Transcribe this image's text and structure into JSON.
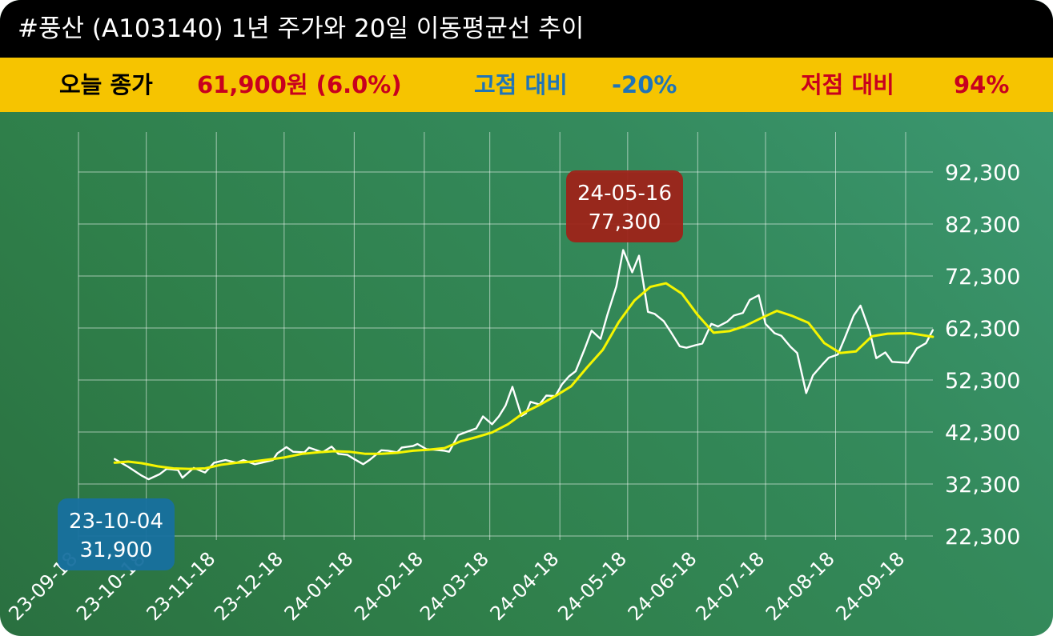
{
  "title": "#풍산 (A103140) 1년 주가와 20일 이동평균선 추이",
  "info": {
    "close_label": "오늘 종가",
    "close_value": "61,900원 (6.0%)",
    "high_label": "고점 대비",
    "high_value": "-20%",
    "low_label": "저점 대비",
    "low_value": "94%"
  },
  "colors": {
    "title_bg": "#000000",
    "info_bg": "#f6c400",
    "close_value": "#c8001e",
    "high": "#1f74b8",
    "low": "#c8001e",
    "price_line": "#ffffff",
    "ma_line": "#f5f500",
    "high_callout": "#9e2319",
    "low_callout": "#17709f"
  },
  "chart_data": {
    "type": "line",
    "x_labels": [
      "23-09-18",
      "23-10-18",
      "23-11-18",
      "23-12-18",
      "24-01-18",
      "24-02-18",
      "24-03-18",
      "24-04-18",
      "24-05-18",
      "24-06-18",
      "24-07-18",
      "24-08-18",
      "24-09-18"
    ],
    "y_ticks": [
      "22,300",
      "32,300",
      "42,300",
      "52,300",
      "62,300",
      "72,300",
      "82,300",
      "92,300"
    ],
    "ylim": [
      22300,
      92300
    ],
    "grid": true,
    "series": [
      {
        "role": "price",
        "points": [
          [
            "23-10-04",
            37100
          ],
          [
            "23-10-10",
            35600
          ],
          [
            "23-10-16",
            33900
          ],
          [
            "23-10-19",
            33200
          ],
          [
            "23-10-24",
            34200
          ],
          [
            "23-10-27",
            35200
          ],
          [
            "23-11-01",
            35000
          ],
          [
            "23-11-03",
            33500
          ],
          [
            "23-11-08",
            35400
          ],
          [
            "23-11-13",
            34500
          ],
          [
            "23-11-17",
            36400
          ],
          [
            "23-11-22",
            36900
          ],
          [
            "23-11-27",
            36400
          ],
          [
            "23-11-30",
            36900
          ],
          [
            "23-12-05",
            36100
          ],
          [
            "23-12-08",
            36400
          ],
          [
            "23-12-13",
            36900
          ],
          [
            "23-12-15",
            38200
          ],
          [
            "23-12-19",
            39400
          ],
          [
            "23-12-22",
            38500
          ],
          [
            "23-12-27",
            38400
          ],
          [
            "23-12-29",
            39300
          ],
          [
            "24-01-04",
            38400
          ],
          [
            "24-01-08",
            39500
          ],
          [
            "24-01-11",
            38100
          ],
          [
            "24-01-15",
            37900
          ],
          [
            "24-01-18",
            37100
          ],
          [
            "24-01-22",
            36100
          ],
          [
            "24-01-25",
            37000
          ],
          [
            "24-01-30",
            38800
          ],
          [
            "24-02-02",
            38700
          ],
          [
            "24-02-06",
            38400
          ],
          [
            "24-02-08",
            39300
          ],
          [
            "24-02-13",
            39600
          ],
          [
            "24-02-15",
            40000
          ],
          [
            "24-02-19",
            39000
          ],
          [
            "24-02-22",
            38900
          ],
          [
            "24-02-27",
            38700
          ],
          [
            "24-02-29",
            38500
          ],
          [
            "24-03-04",
            41700
          ],
          [
            "24-03-07",
            42200
          ],
          [
            "24-03-12",
            43000
          ],
          [
            "24-03-15",
            45300
          ],
          [
            "24-03-19",
            43800
          ],
          [
            "24-03-22",
            45300
          ],
          [
            "24-03-25",
            47400
          ],
          [
            "24-03-28",
            51000
          ],
          [
            "24-04-01",
            45400
          ],
          [
            "24-04-03",
            45900
          ],
          [
            "24-04-05",
            48100
          ],
          [
            "24-04-09",
            47600
          ],
          [
            "24-04-12",
            49300
          ],
          [
            "24-04-16",
            49200
          ],
          [
            "24-04-19",
            51500
          ],
          [
            "24-04-22",
            53000
          ],
          [
            "24-04-25",
            54000
          ],
          [
            "24-04-29",
            58300
          ],
          [
            "24-05-02",
            61800
          ],
          [
            "24-05-06",
            60200
          ],
          [
            "24-05-09",
            64800
          ],
          [
            "24-05-13",
            70300
          ],
          [
            "24-05-16",
            77300
          ],
          [
            "24-05-20",
            73000
          ],
          [
            "24-05-23",
            76200
          ],
          [
            "24-05-27",
            65400
          ],
          [
            "24-05-30",
            65000
          ],
          [
            "24-06-03",
            63600
          ],
          [
            "24-06-06",
            61600
          ],
          [
            "24-06-10",
            58800
          ],
          [
            "24-06-13",
            58500
          ],
          [
            "24-06-17",
            59000
          ],
          [
            "24-06-20",
            59300
          ],
          [
            "24-06-24",
            63100
          ],
          [
            "24-06-27",
            62600
          ],
          [
            "24-07-01",
            63500
          ],
          [
            "24-07-04",
            64700
          ],
          [
            "24-07-08",
            65200
          ],
          [
            "24-07-11",
            67700
          ],
          [
            "24-07-15",
            68600
          ],
          [
            "24-07-18",
            63100
          ],
          [
            "24-07-22",
            61300
          ],
          [
            "24-07-25",
            60800
          ],
          [
            "24-07-29",
            58700
          ],
          [
            "24-08-01",
            57500
          ],
          [
            "24-08-05",
            49800
          ],
          [
            "24-08-08",
            53200
          ],
          [
            "24-08-12",
            55200
          ],
          [
            "24-08-15",
            56600
          ],
          [
            "24-08-19",
            57200
          ],
          [
            "24-08-22",
            60300
          ],
          [
            "24-08-26",
            64700
          ],
          [
            "24-08-29",
            66600
          ],
          [
            "24-09-02",
            61800
          ],
          [
            "24-09-05",
            56500
          ],
          [
            "24-09-09",
            57600
          ],
          [
            "24-09-12",
            55800
          ],
          [
            "24-09-19",
            55600
          ],
          [
            "24-09-23",
            58400
          ],
          [
            "24-09-27",
            59400
          ],
          [
            "24-09-30",
            61900
          ]
        ]
      },
      {
        "role": "ma20",
        "points": [
          [
            "23-10-04",
            36400
          ],
          [
            "23-10-10",
            36600
          ],
          [
            "23-10-16",
            36300
          ],
          [
            "23-10-23",
            35700
          ],
          [
            "23-10-30",
            35300
          ],
          [
            "23-11-06",
            35200
          ],
          [
            "23-11-13",
            35300
          ],
          [
            "23-11-20",
            36000
          ],
          [
            "23-11-27",
            36400
          ],
          [
            "23-12-04",
            36600
          ],
          [
            "23-12-11",
            37000
          ],
          [
            "23-12-18",
            37400
          ],
          [
            "23-12-26",
            38100
          ],
          [
            "24-01-02",
            38400
          ],
          [
            "24-01-09",
            38600
          ],
          [
            "24-01-16",
            38500
          ],
          [
            "24-01-23",
            38100
          ],
          [
            "24-01-30",
            38100
          ],
          [
            "24-02-06",
            38300
          ],
          [
            "24-02-13",
            38700
          ],
          [
            "24-02-20",
            38900
          ],
          [
            "24-02-27",
            39200
          ],
          [
            "24-03-05",
            40500
          ],
          [
            "24-03-12",
            41300
          ],
          [
            "24-03-19",
            42200
          ],
          [
            "24-03-26",
            43800
          ],
          [
            "24-04-02",
            46000
          ],
          [
            "24-04-09",
            47500
          ],
          [
            "24-04-16",
            49200
          ],
          [
            "24-04-23",
            51100
          ],
          [
            "24-04-30",
            54700
          ],
          [
            "24-05-07",
            58100
          ],
          [
            "24-05-14",
            63400
          ],
          [
            "24-05-21",
            67600
          ],
          [
            "24-05-28",
            70200
          ],
          [
            "24-06-04",
            70900
          ],
          [
            "24-06-11",
            68900
          ],
          [
            "24-06-18",
            64800
          ],
          [
            "24-06-25",
            61400
          ],
          [
            "24-07-02",
            61700
          ],
          [
            "24-07-09",
            62700
          ],
          [
            "24-07-16",
            64200
          ],
          [
            "24-07-23",
            65600
          ],
          [
            "24-07-30",
            64600
          ],
          [
            "24-08-06",
            63300
          ],
          [
            "24-08-13",
            59400
          ],
          [
            "24-08-20",
            57500
          ],
          [
            "24-08-27",
            57800
          ],
          [
            "24-09-03",
            60700
          ],
          [
            "24-09-10",
            61200
          ],
          [
            "24-09-20",
            61300
          ],
          [
            "24-09-30",
            60600
          ]
        ]
      }
    ],
    "annotations": [
      {
        "kind": "high",
        "date": "24-05-16",
        "value": "77,300"
      },
      {
        "kind": "low",
        "date": "23-10-04",
        "value": "31,900"
      }
    ]
  }
}
